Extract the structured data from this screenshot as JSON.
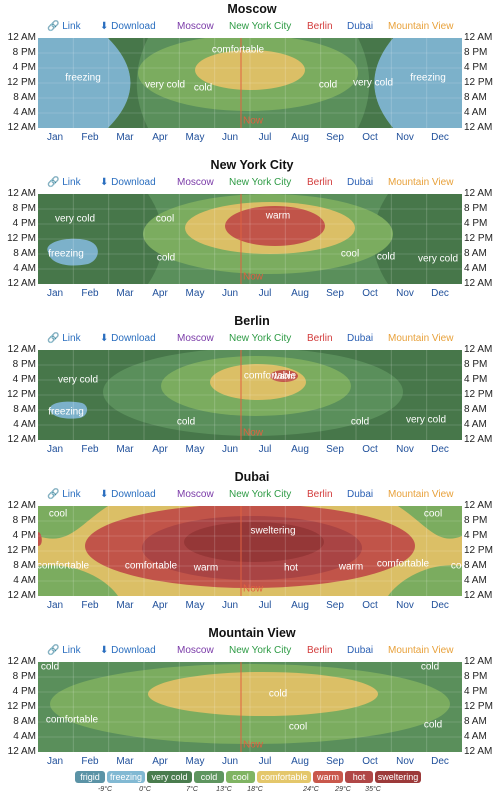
{
  "links": {
    "link": "Link",
    "download": "Download",
    "cities": [
      "Moscow",
      "New York City",
      "Berlin",
      "Dubai",
      "Mountain View"
    ]
  },
  "colors": {
    "frigid": "#5b93a6",
    "freezing": "#82b9d3",
    "very_cold": "#4a7c4e",
    "cold": "#5e955f",
    "cool": "#80b463",
    "comfortable": "#e4c76b",
    "warm": "#c9584c",
    "hot": "#b04747",
    "sweltering": "#9c3a3a",
    "link_blue": "#2a6ebf",
    "moscow": "#7a3aa8",
    "nyc": "#2e9b45",
    "berlin": "#d23b3b",
    "dubai": "#2a5fb3",
    "mountain_view": "#e8a13a",
    "now_line": "#e06040"
  },
  "now_label": "Now",
  "legend": {
    "chips": [
      {
        "label": "frigid",
        "color": "#5b93a6"
      },
      {
        "label": "freezing",
        "color": "#82b9d3"
      },
      {
        "label": "very cold",
        "color": "#4a7c4e"
      },
      {
        "label": "cold",
        "color": "#5e955f"
      },
      {
        "label": "cool",
        "color": "#80b463"
      },
      {
        "label": "comfortable",
        "color": "#e4c76b"
      },
      {
        "label": "warm",
        "color": "#c9584c"
      },
      {
        "label": "hot",
        "color": "#b04747"
      },
      {
        "label": "sweltering",
        "color": "#9c3a3a"
      }
    ],
    "thresholds": [
      "-9°C",
      "0°C",
      "7°C",
      "13°C",
      "18°C",
      "24°C",
      "29°C",
      "35°C"
    ]
  },
  "chart_data": [
    {
      "type": "heatmap",
      "title": "Moscow",
      "x_categories": [
        "Jan",
        "Feb",
        "Mar",
        "Apr",
        "May",
        "Jun",
        "Jul",
        "Aug",
        "Sep",
        "Oct",
        "Nov",
        "Dec"
      ],
      "y_ticks": [
        "12 AM",
        "8 PM",
        "4 PM",
        "12 PM",
        "8 AM",
        "4 AM",
        "12 AM"
      ],
      "zones": [
        "freezing",
        "very cold",
        "cold",
        "comfortable",
        "cold",
        "very cold",
        "freezing"
      ],
      "zone_labels": [
        "freezing",
        "very cold",
        "cold",
        "comfortable",
        "cold",
        "very cold",
        "freezing"
      ]
    },
    {
      "type": "heatmap",
      "title": "New York City",
      "x_categories": [
        "Jan",
        "Feb",
        "Mar",
        "Apr",
        "May",
        "Jun",
        "Jul",
        "Aug",
        "Sep",
        "Oct",
        "Nov",
        "Dec"
      ],
      "y_ticks": [
        "12 AM",
        "8 PM",
        "4 PM",
        "12 PM",
        "8 AM",
        "4 AM",
        "12 AM"
      ],
      "zones": [
        "very cold",
        "freezing",
        "cold",
        "cool",
        "comfortable",
        "warm",
        "cool",
        "cold",
        "very cold"
      ],
      "zone_labels": [
        "very cold",
        "freezing",
        "cool",
        "cold",
        "warm",
        "cool",
        "cold",
        "very cold"
      ]
    },
    {
      "type": "heatmap",
      "title": "Berlin",
      "x_categories": [
        "Jan",
        "Feb",
        "Mar",
        "Apr",
        "May",
        "Jun",
        "Jul",
        "Aug",
        "Sep",
        "Oct",
        "Nov",
        "Dec"
      ],
      "y_ticks": [
        "12 AM",
        "8 PM",
        "4 PM",
        "12 PM",
        "8 AM",
        "4 AM",
        "12 AM"
      ],
      "zones": [
        "very cold",
        "freezing",
        "cold",
        "cool",
        "comfortable",
        "warm",
        "cold",
        "very cold"
      ],
      "zone_labels": [
        "very cold",
        "freezing",
        "cold",
        "comfortable",
        "warm",
        "cold",
        "very cold"
      ]
    },
    {
      "type": "heatmap",
      "title": "Dubai",
      "x_categories": [
        "Jan",
        "Feb",
        "Mar",
        "Apr",
        "May",
        "Jun",
        "Jul",
        "Aug",
        "Sep",
        "Oct",
        "Nov",
        "Dec"
      ],
      "y_ticks": [
        "12 AM",
        "8 PM",
        "4 PM",
        "12 PM",
        "8 AM",
        "4 AM",
        "12 AM"
      ],
      "zones": [
        "cool",
        "comfortable",
        "warm",
        "hot",
        "sweltering"
      ],
      "zone_labels": [
        "cool",
        "comfortable",
        "cool",
        "comfortable",
        "warm",
        "sweltering",
        "hot",
        "warm",
        "comfortable",
        "cool"
      ]
    },
    {
      "type": "heatmap",
      "title": "Mountain View",
      "x_categories": [
        "Jan",
        "Feb",
        "Mar",
        "Apr",
        "May",
        "Jun",
        "Jul",
        "Aug",
        "Sep",
        "Oct",
        "Nov",
        "Dec"
      ],
      "y_ticks": [
        "12 AM",
        "8 PM",
        "4 PM",
        "12 PM",
        "8 AM",
        "4 AM",
        "12 AM"
      ],
      "zones": [
        "cold",
        "cool",
        "comfortable"
      ],
      "zone_labels": [
        "cold",
        "comfortable",
        "cold",
        "cool",
        "cold",
        "cold"
      ]
    }
  ]
}
